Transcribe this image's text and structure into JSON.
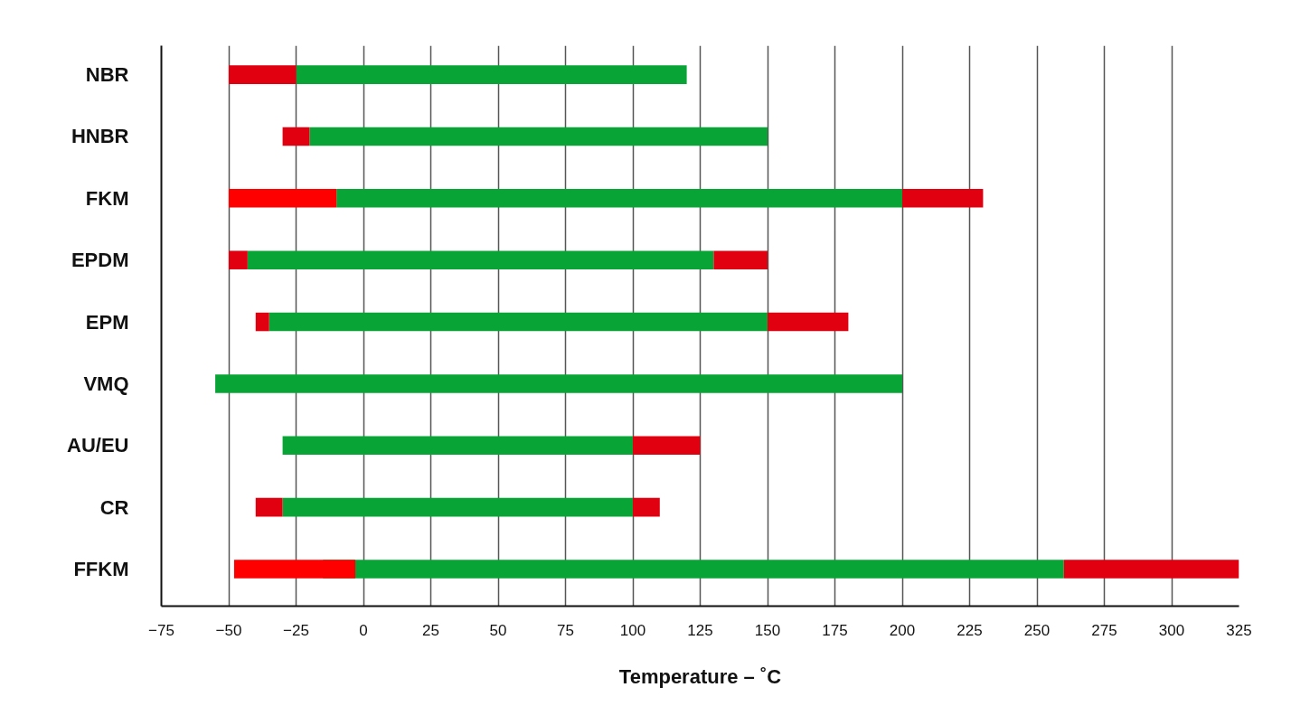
{
  "chart_data": {
    "type": "bar",
    "orientation": "horizontal",
    "xlabel": "Temperature – ˚C",
    "categories": [
      "NBR",
      "HNBR",
      "FKM",
      "EPDM",
      "EPM",
      "VMQ",
      "AU/EU",
      "CR",
      "FFKM"
    ],
    "series": [
      {
        "color": "#08a536",
        "base": [
          -25,
          -20,
          -10,
          -43,
          -35,
          -55,
          -30,
          -30,
          -15
        ],
        "values": [
          145,
          170,
          210,
          173,
          185,
          255,
          130,
          130,
          275
        ]
      },
      {
        "colors": [
          "#e1000f",
          "#e1000f",
          "#ff0000",
          "#e1000f",
          "#e1000f",
          "#e1000f",
          "#e1000f",
          "#e1000f",
          "#ff0000"
        ],
        "base": [
          -50,
          -30,
          -50,
          -50,
          -40,
          null,
          null,
          -40,
          -48
        ],
        "values": [
          25,
          10,
          40,
          7,
          5,
          null,
          null,
          10,
          45
        ]
      },
      {
        "color": "#e1000f",
        "base": [
          null,
          null,
          200,
          130,
          150,
          null,
          100,
          100,
          260
        ],
        "values": [
          null,
          null,
          30,
          20,
          30,
          null,
          25,
          10,
          65
        ]
      }
    ],
    "xlim": [
      -75,
      325
    ],
    "xticks": [
      -75,
      -50,
      -25,
      0,
      25,
      50,
      75,
      100,
      125,
      150,
      175,
      200,
      225,
      250,
      275,
      300,
      325
    ],
    "grid": "x"
  }
}
